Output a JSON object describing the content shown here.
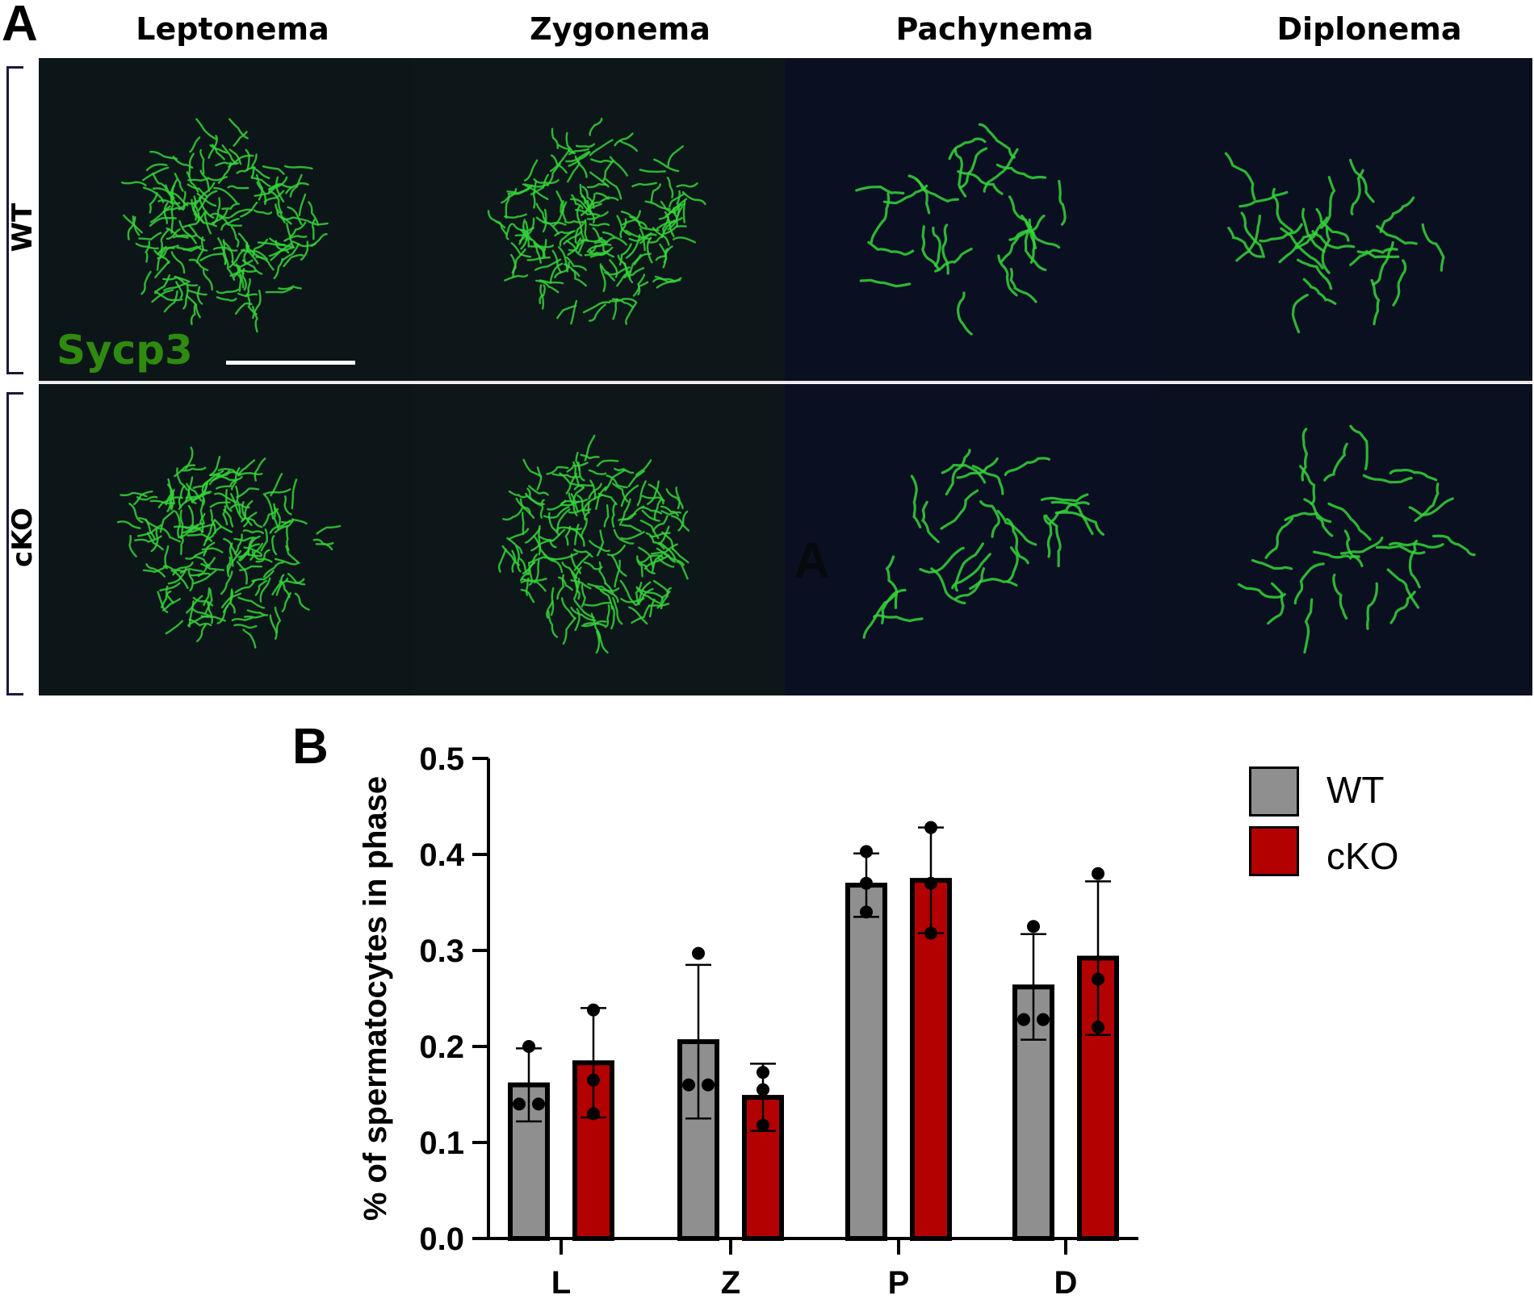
{
  "panel_a": {
    "letter": "A",
    "columns": [
      "Leptonema",
      "Zygonema",
      "Pachynema",
      "Diplonema"
    ],
    "rows": [
      "WT",
      "cKO"
    ],
    "stain_label": "Sycp3",
    "stain_color": "#2f8a10",
    "background_color": "#0b1416",
    "signal_color": "#35d43a",
    "watermark": "A"
  },
  "panel_b": {
    "letter": "B"
  },
  "legend": [
    {
      "label": "WT",
      "color": "#8f8f8f"
    },
    {
      "label": "cKO",
      "color": "#b30000"
    }
  ],
  "chart_data": {
    "type": "bar",
    "categories": [
      "L",
      "Z",
      "P",
      "D"
    ],
    "ylabel": "% of spermatocytes in phase",
    "xlabel": "",
    "ylim": [
      0,
      0.5
    ],
    "yticks": [
      "0.0",
      "0.1",
      "0.2",
      "0.3",
      "0.4",
      "0.5"
    ],
    "grid": false,
    "legend_position": "top-right",
    "series": [
      {
        "name": "WT",
        "color": "#8f8f8f",
        "values": [
          0.16,
          0.205,
          0.368,
          0.262
        ],
        "error": [
          0.038,
          0.08,
          0.033,
          0.055
        ],
        "points": [
          [
            0.2,
            0.14,
            0.14
          ],
          [
            0.297,
            0.16,
            0.16
          ],
          [
            0.403,
            0.37,
            0.34
          ],
          [
            0.325,
            0.228,
            0.228
          ]
        ]
      },
      {
        "name": "cKO",
        "color": "#b30000",
        "values": [
          0.183,
          0.147,
          0.373,
          0.292
        ],
        "error": [
          0.057,
          0.035,
          0.055,
          0.08
        ],
        "points": [
          [
            0.238,
            0.165,
            0.13
          ],
          [
            0.173,
            0.155,
            0.118
          ],
          [
            0.428,
            0.37,
            0.318
          ],
          [
            0.38,
            0.27,
            0.22
          ]
        ]
      }
    ]
  }
}
